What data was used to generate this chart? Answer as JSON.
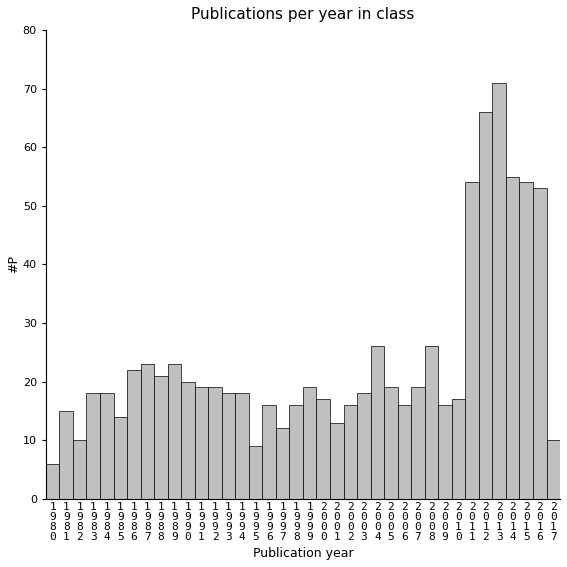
{
  "title": "Publications per year in class",
  "xlabel": "Publication year",
  "ylabel": "#P",
  "years": [
    1980,
    1981,
    1982,
    1983,
    1984,
    1985,
    1986,
    1987,
    1988,
    1989,
    1990,
    1991,
    1992,
    1993,
    1994,
    1995,
    1996,
    1997,
    1998,
    1999,
    2000,
    2001,
    2002,
    2003,
    2004,
    2005,
    2006,
    2007,
    2008,
    2009,
    2010,
    2011,
    2012,
    2013,
    2014,
    2015,
    2016,
    2017
  ],
  "values": [
    6,
    15,
    10,
    18,
    18,
    14,
    22,
    23,
    21,
    23,
    20,
    19,
    19,
    18,
    18,
    9,
    16,
    12,
    16,
    19,
    17,
    13,
    16,
    18,
    26,
    19,
    16,
    19,
    26,
    16,
    17,
    54,
    66,
    71,
    55,
    54,
    53,
    10
  ],
  "bar_color": "#c0c0c0",
  "bar_edge_color": "#000000",
  "bar_linewidth": 0.5,
  "ylim": [
    0,
    80
  ],
  "yticks": [
    0,
    10,
    20,
    30,
    40,
    50,
    60,
    70,
    80
  ],
  "bg_color": "#ffffff",
  "title_fontsize": 11,
  "label_fontsize": 9,
  "tick_fontsize": 8
}
